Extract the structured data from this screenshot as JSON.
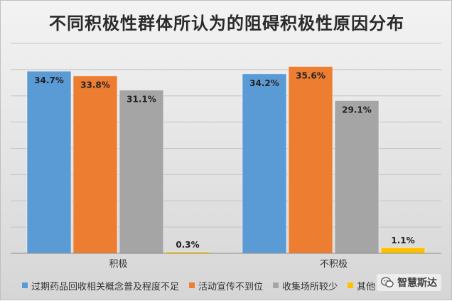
{
  "chart_data": {
    "type": "bar",
    "title": "不同积极性群体所认为的阻碍积极性原因分布",
    "categories": [
      "积极",
      "不积极"
    ],
    "series": [
      {
        "name": "过期药品回收相关概念普及程度不足",
        "values": [
          34.7,
          34.2
        ],
        "labels": [
          "34.7%",
          "34.2%"
        ],
        "color": "#5b9bd5"
      },
      {
        "name": "活动宣传不到位",
        "values": [
          33.8,
          35.6
        ],
        "labels": [
          "33.8%",
          "35.6%"
        ],
        "color": "#ed7d31"
      },
      {
        "name": "收集场所较少",
        "values": [
          31.1,
          29.1
        ],
        "labels": [
          "31.1%",
          "29.1%"
        ],
        "color": "#a5a5a5"
      },
      {
        "name": "其他",
        "values": [
          0.3,
          1.1
        ],
        "labels": [
          "0.3%",
          "1.1%"
        ],
        "color": "#ffc000"
      }
    ],
    "ylim": [
      0,
      40
    ],
    "grid": true,
    "legend": "bottom"
  },
  "watermark": {
    "text": "智慧斯达",
    "icon": "wechat-icon"
  }
}
